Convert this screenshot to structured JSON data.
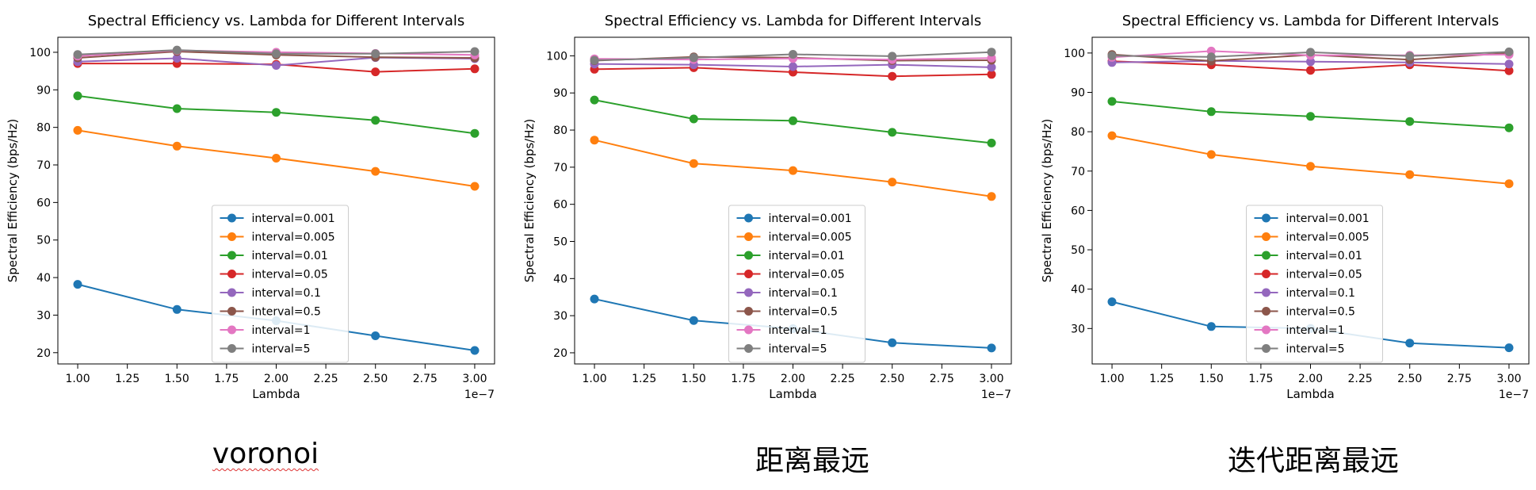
{
  "captions": [
    "voronoi",
    "距离最远",
    "迭代距离最远"
  ],
  "chart_data": [
    {
      "type": "line",
      "title": "Spectral Efficiency vs. Lambda for Different Intervals",
      "xlabel": "Lambda",
      "ylabel": "Spectral Efficiency (bps/Hz)",
      "x_offset_label": "1e−7",
      "x": [
        1.0,
        1.5,
        2.0,
        2.5,
        3.0
      ],
      "xticks": [
        "1.00",
        "1.25",
        "1.50",
        "1.75",
        "2.00",
        "2.25",
        "2.50",
        "2.75",
        "3.00"
      ],
      "xlim": [
        0.9,
        3.1
      ],
      "ylim": [
        17,
        104
      ],
      "yticks": [
        20,
        30,
        40,
        50,
        60,
        70,
        80,
        90,
        100
      ],
      "grid": false,
      "legend_position": "lower-center",
      "series": [
        {
          "name": "interval=0.001",
          "color": "#1f77b4",
          "values": [
            38.2,
            31.5,
            28.5,
            24.5,
            20.6
          ]
        },
        {
          "name": "interval=0.005",
          "color": "#ff7f0e",
          "values": [
            79.2,
            75.0,
            71.8,
            68.3,
            64.3
          ]
        },
        {
          "name": "interval=0.01",
          "color": "#2ca02c",
          "values": [
            88.4,
            85.0,
            84.0,
            81.9,
            78.4
          ]
        },
        {
          "name": "interval=0.05",
          "color": "#d62728",
          "values": [
            97.0,
            97.0,
            96.8,
            94.8,
            95.6
          ]
        },
        {
          "name": "interval=0.1",
          "color": "#9467bd",
          "values": [
            97.5,
            98.4,
            96.5,
            98.6,
            98.3
          ]
        },
        {
          "name": "interval=0.5",
          "color": "#8c564b",
          "values": [
            98.5,
            100.2,
            99.3,
            98.7,
            98.5
          ]
        },
        {
          "name": "interval=1",
          "color": "#e377c2",
          "values": [
            99.0,
            100.5,
            100.0,
            99.7,
            99.3
          ]
        },
        {
          "name": "interval=5",
          "color": "#7f7f7f",
          "values": [
            99.4,
            100.6,
            99.6,
            99.6,
            100.2
          ]
        }
      ]
    },
    {
      "type": "line",
      "title": "Spectral Efficiency vs. Lambda for Different Intervals",
      "xlabel": "Lambda",
      "ylabel": "Spectral Efficiency (bps/Hz)",
      "x_offset_label": "1e−7",
      "x": [
        1.0,
        1.5,
        2.0,
        2.5,
        3.0
      ],
      "xticks": [
        "1.00",
        "1.25",
        "1.50",
        "1.75",
        "2.00",
        "2.25",
        "2.50",
        "2.75",
        "3.00"
      ],
      "xlim": [
        0.9,
        3.1
      ],
      "ylim": [
        17,
        105
      ],
      "yticks": [
        20,
        30,
        40,
        50,
        60,
        70,
        80,
        90,
        100
      ],
      "grid": false,
      "legend_position": "lower-center",
      "series": [
        {
          "name": "interval=0.001",
          "color": "#1f77b4",
          "values": [
            34.5,
            28.7,
            26.5,
            22.7,
            21.3
          ]
        },
        {
          "name": "interval=0.005",
          "color": "#ff7f0e",
          "values": [
            77.3,
            71.0,
            69.1,
            66.0,
            62.1
          ]
        },
        {
          "name": "interval=0.01",
          "color": "#2ca02c",
          "values": [
            88.1,
            83.0,
            82.5,
            79.4,
            76.5
          ]
        },
        {
          "name": "interval=0.05",
          "color": "#d62728",
          "values": [
            96.4,
            96.8,
            95.6,
            94.5,
            95.0
          ]
        },
        {
          "name": "interval=0.1",
          "color": "#9467bd",
          "values": [
            97.8,
            97.6,
            97.1,
            97.6,
            96.9
          ]
        },
        {
          "name": "interval=0.5",
          "color": "#8c564b",
          "values": [
            98.7,
            99.7,
            99.5,
            98.7,
            98.8
          ]
        },
        {
          "name": "interval=1",
          "color": "#e377c2",
          "values": [
            99.2,
            99.0,
            99.3,
            99.0,
            99.4
          ]
        },
        {
          "name": "interval=5",
          "color": "#7f7f7f",
          "values": [
            98.8,
            99.5,
            100.4,
            99.9,
            101.0
          ]
        }
      ]
    },
    {
      "type": "line",
      "title": "Spectral Efficiency vs. Lambda for Different Intervals",
      "xlabel": "Lambda",
      "ylabel": "Spectral Efficiency (bps/Hz)",
      "x_offset_label": "1e−7",
      "x": [
        1.0,
        1.5,
        2.0,
        2.5,
        3.0
      ],
      "xticks": [
        "1.00",
        "1.25",
        "1.50",
        "1.75",
        "2.00",
        "2.25",
        "2.50",
        "2.75",
        "3.00"
      ],
      "xlim": [
        0.9,
        3.1
      ],
      "ylim": [
        21,
        104
      ],
      "yticks": [
        30,
        40,
        50,
        60,
        70,
        80,
        90,
        100
      ],
      "grid": false,
      "legend_position": "lower-center",
      "series": [
        {
          "name": "interval=0.001",
          "color": "#1f77b4",
          "values": [
            36.8,
            30.5,
            30.0,
            26.3,
            25.1
          ]
        },
        {
          "name": "interval=0.005",
          "color": "#ff7f0e",
          "values": [
            79.0,
            74.2,
            71.2,
            69.1,
            66.8
          ]
        },
        {
          "name": "interval=0.01",
          "color": "#2ca02c",
          "values": [
            87.7,
            85.1,
            83.9,
            82.6,
            81.0
          ]
        },
        {
          "name": "interval=0.05",
          "color": "#d62728",
          "values": [
            97.9,
            97.0,
            95.6,
            97.0,
            95.5
          ]
        },
        {
          "name": "interval=0.1",
          "color": "#9467bd",
          "values": [
            97.6,
            98.0,
            97.8,
            97.6,
            97.2
          ]
        },
        {
          "name": "interval=0.5",
          "color": "#8c564b",
          "values": [
            99.6,
            98.0,
            99.5,
            98.3,
            100.0
          ]
        },
        {
          "name": "interval=1",
          "color": "#e377c2",
          "values": [
            98.9,
            100.5,
            99.4,
            99.4,
            99.6
          ]
        },
        {
          "name": "interval=5",
          "color": "#7f7f7f",
          "values": [
            99.3,
            99.0,
            100.2,
            99.2,
            100.3
          ]
        }
      ]
    }
  ]
}
